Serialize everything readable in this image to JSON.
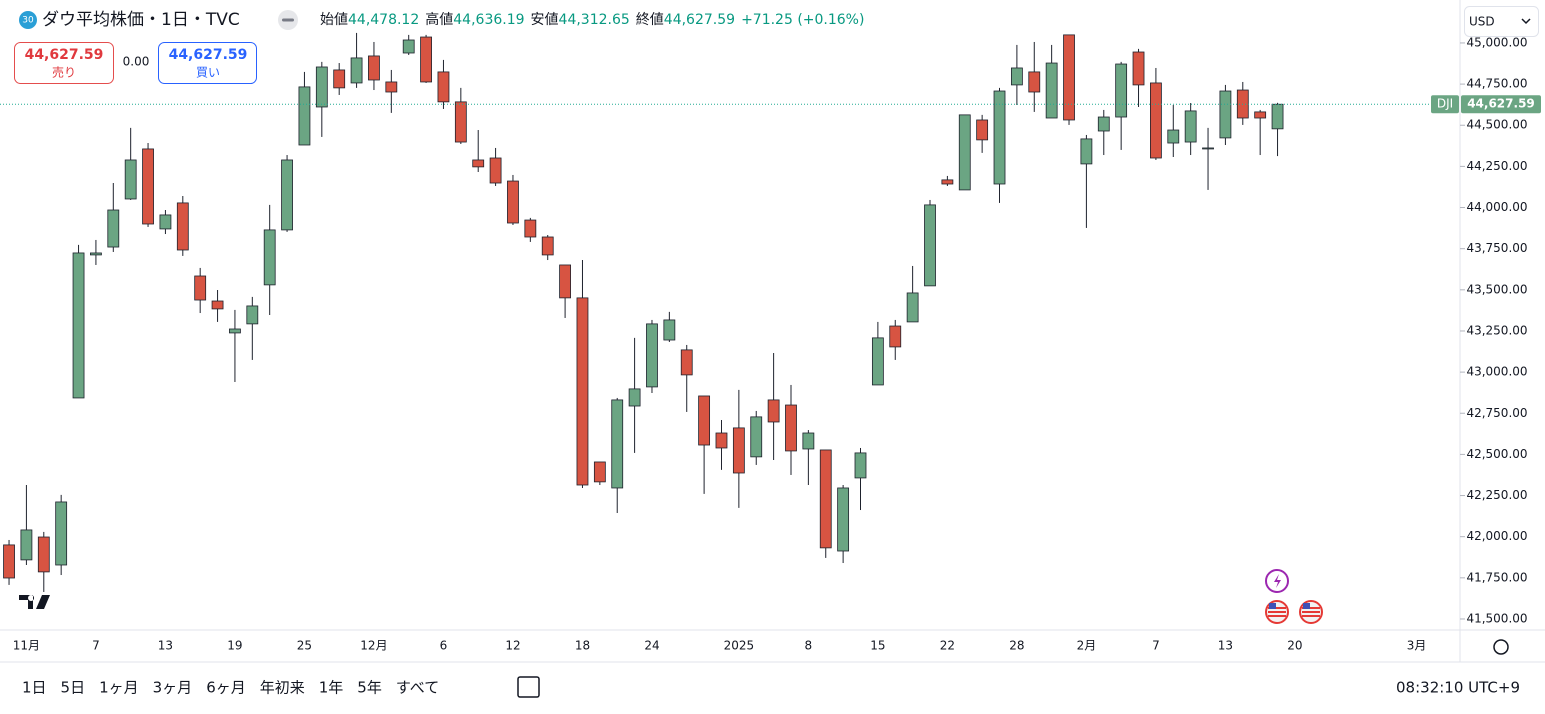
{
  "header": {
    "badge": "30",
    "title": "ダウ平均株価・1日・TVC",
    "ohlc": [
      {
        "label": "始値",
        "value": "44,478.12"
      },
      {
        "label": "高値",
        "value": "44,636.19"
      },
      {
        "label": "安値",
        "value": "44,312.65"
      },
      {
        "label": "終値",
        "value": "44,627.59"
      }
    ],
    "change": "+71.25 (+0.16%)"
  },
  "trade": {
    "sell_price": "44,627.59",
    "sell_label": "売り",
    "spread": "0.00",
    "buy_price": "44,627.59",
    "buy_label": "買い"
  },
  "currency": "USD",
  "toolbar": {
    "ranges": [
      "1日",
      "5日",
      "1ヶ月",
      "3ヶ月",
      "6ヶ月",
      "年初来",
      "1年",
      "5年",
      "すべて"
    ],
    "clock": "08:32:10 UTC+9"
  },
  "chart_data": {
    "type": "candlestick",
    "symbol": "DJI",
    "up_color": "#6ba583",
    "down_color": "#d75442",
    "grid": false,
    "last_price": {
      "value": 44627.59,
      "label": "44,627.59"
    },
    "xlim": [
      -0.52,
      83.5
    ],
    "xticks": [
      {
        "value": 1,
        "label": "11月"
      },
      {
        "value": 5,
        "label": "7"
      },
      {
        "value": 9,
        "label": "13"
      },
      {
        "value": 13,
        "label": "19"
      },
      {
        "value": 17,
        "label": "25"
      },
      {
        "value": 21,
        "label": "12月"
      },
      {
        "value": 25,
        "label": "6"
      },
      {
        "value": 29,
        "label": "12"
      },
      {
        "value": 33,
        "label": "18"
      },
      {
        "value": 37,
        "label": "24"
      },
      {
        "value": 42,
        "label": "2025"
      },
      {
        "value": 46,
        "label": "8"
      },
      {
        "value": 50,
        "label": "15"
      },
      {
        "value": 54,
        "label": "22"
      },
      {
        "value": 58,
        "label": "28"
      },
      {
        "value": 62,
        "label": "2月"
      },
      {
        "value": 66,
        "label": "7"
      },
      {
        "value": 70,
        "label": "13"
      },
      {
        "value": 74,
        "label": "20"
      },
      {
        "value": 81,
        "label": "3月"
      }
    ],
    "ylim": [
      41433,
      45261
    ],
    "yticks": [
      {
        "value": 41500,
        "label": "41,500.00"
      },
      {
        "value": 41750,
        "label": "41,750.00"
      },
      {
        "value": 42000,
        "label": "42,000.00"
      },
      {
        "value": 42250,
        "label": "42,250.00"
      },
      {
        "value": 42500,
        "label": "42,500.00"
      },
      {
        "value": 42750,
        "label": "42,750.00"
      },
      {
        "value": 43000,
        "label": "43,000.00"
      },
      {
        "value": 43250,
        "label": "43,250.00"
      },
      {
        "value": 43500,
        "label": "43,500.00"
      },
      {
        "value": 43750,
        "label": "43,750.00"
      },
      {
        "value": 44000,
        "label": "44,000.00"
      },
      {
        "value": 44250,
        "label": "44,250.00"
      },
      {
        "value": 44500,
        "label": "44,500.00"
      },
      {
        "value": 44750,
        "label": "44,750.00"
      },
      {
        "value": 45000,
        "label": "45,000.00"
      }
    ],
    "open": [
      41950,
      41859,
      41998,
      41828,
      42843,
      43712,
      43760,
      44052,
      44356,
      43870,
      44028,
      43584,
      43432,
      43238,
      43293,
      43530,
      43864,
      44380,
      44611,
      44836,
      44757,
      44921,
      44763,
      44939,
      45036,
      44824,
      44642,
      44289,
      44301,
      44161,
      43924,
      43821,
      43651,
      43451,
      42454,
      42296,
      42794,
      42910,
      43195,
      43135,
      42855,
      42630,
      42661,
      42485,
      42831,
      42800,
      42533,
      42527,
      41913,
      42357,
      42922,
      43280,
      43305,
      43524,
      44168,
      44107,
      44532,
      44143,
      44745,
      44824,
      44544,
      45049,
      44265,
      44465,
      44550,
      44945,
      44757,
      44392,
      44398,
      44356,
      44423,
      44714,
      44581,
      44478.12
    ],
    "high": [
      41980,
      42314,
      42029,
      42254,
      43773,
      43803,
      44149,
      44484,
      44392,
      43985,
      44070,
      43633,
      43499,
      43378,
      43457,
      44016,
      44319,
      44824,
      44885,
      44878,
      45061,
      45006,
      44836,
      45049,
      45049,
      44897,
      44727,
      44471,
      44362,
      44198,
      43937,
      43833,
      43651,
      43681,
      42454,
      42843,
      43208,
      43317,
      43366,
      43165,
      42855,
      42709,
      42892,
      42764,
      43116,
      42922,
      42648,
      42527,
      42314,
      42539,
      43305,
      43317,
      43645,
      44046,
      44192,
      44563,
      44563,
      44727,
      44988,
      45006,
      44988,
      45049,
      44441,
      44593,
      44885,
      44964,
      44848,
      44623,
      44635,
      44484,
      44745,
      44763,
      44593,
      44636.19
    ],
    "low": [
      41707,
      41828,
      41664,
      41767,
      42843,
      43651,
      43730,
      44046,
      43882,
      43839,
      43706,
      43359,
      43305,
      42940,
      43074,
      43347,
      43852,
      44380,
      44429,
      44684,
      44727,
      44714,
      44575,
      44927,
      44757,
      44599,
      44386,
      44216,
      44131,
      43894,
      43791,
      43681,
      43329,
      42296,
      42314,
      42144,
      42509,
      42873,
      43183,
      42758,
      42260,
      42406,
      42175,
      42436,
      42466,
      42375,
      42314,
      41871,
      41840,
      42162,
      42922,
      43074,
      43305,
      43524,
      44131,
      44107,
      44332,
      44028,
      44623,
      44581,
      44544,
      44502,
      43876,
      44319,
      44350,
      44611,
      44289,
      44307,
      44319,
      44107,
      44380,
      44502,
      44319,
      44312.65
    ],
    "close": [
      41749,
      42041,
      41786,
      42211,
      43724,
      43724,
      43985,
      44289,
      43900,
      43955,
      43742,
      43438,
      43384,
      43262,
      43402,
      43864,
      44289,
      44733,
      44854,
      44727,
      44909,
      44775,
      44702,
      45018,
      44763,
      44642,
      44398,
      44247,
      44149,
      43906,
      43821,
      43712,
      43451,
      42314,
      42333,
      42831,
      42898,
      43293,
      43317,
      42983,
      42557,
      42539,
      42387,
      42728,
      42697,
      42521,
      42630,
      41932,
      42296,
      42509,
      43208,
      43153,
      43481,
      44016,
      44143,
      44563,
      44411,
      44708,
      44848,
      44702,
      44878,
      44532,
      44417,
      44550,
      44872,
      44745,
      44301,
      44471,
      44587,
      44362,
      44708,
      44544,
      44544,
      44627.59
    ]
  }
}
